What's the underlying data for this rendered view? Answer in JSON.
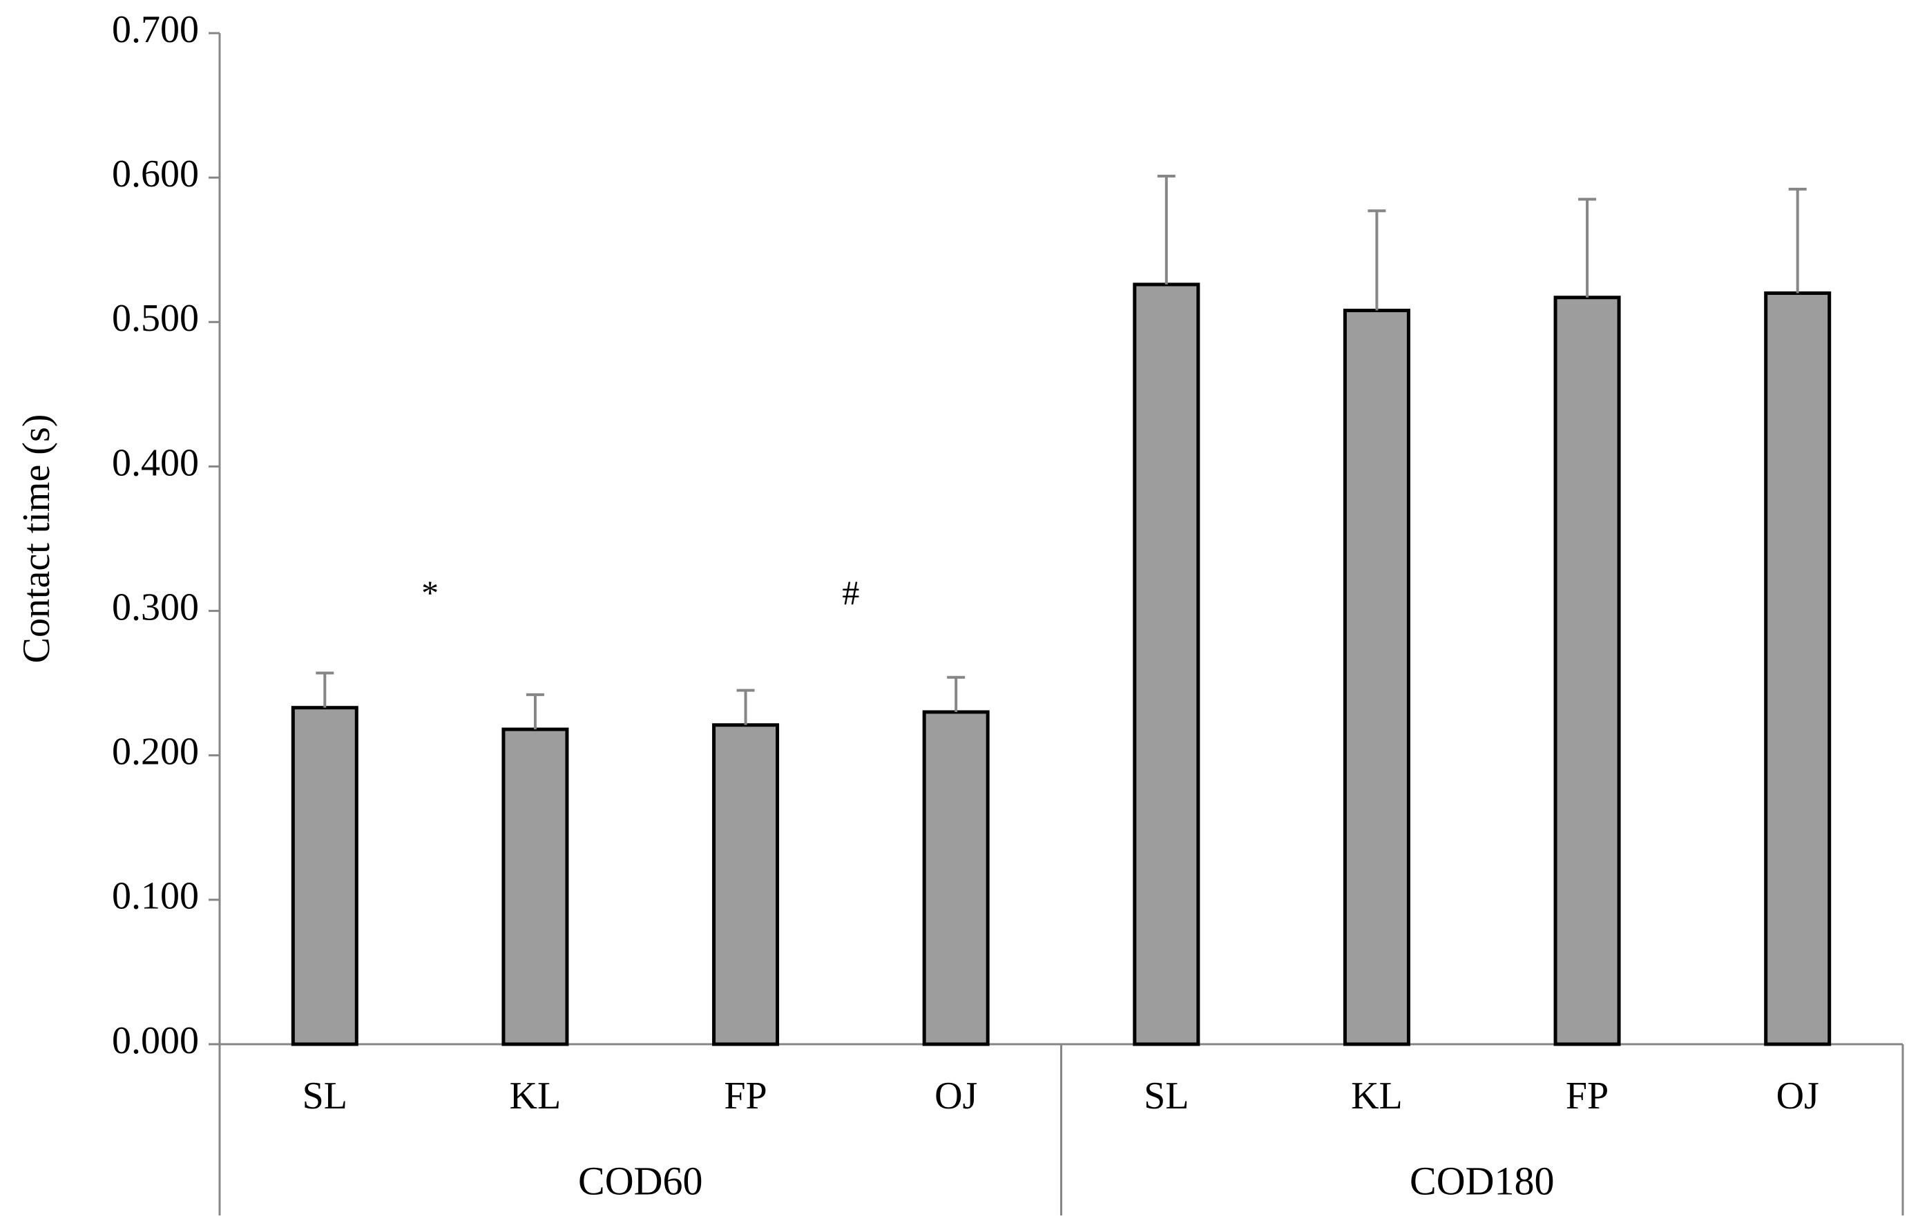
{
  "chart_data": {
    "type": "bar",
    "title": "",
    "xlabel": "",
    "ylabel": "Contact time (s)",
    "ylim": [
      0,
      0.7
    ],
    "yticks": [
      "0.000",
      "0.100",
      "0.200",
      "0.300",
      "0.400",
      "0.500",
      "0.600",
      "0.700"
    ],
    "grid": false,
    "groups": [
      {
        "name": "COD60",
        "categories": [
          "SL",
          "KL",
          "FP",
          "OJ"
        ],
        "values": [
          0.233,
          0.218,
          0.221,
          0.23
        ],
        "errors": [
          0.024,
          0.024,
          0.024,
          0.024
        ]
      },
      {
        "name": "COD180",
        "categories": [
          "SL",
          "KL",
          "FP",
          "OJ"
        ],
        "values": [
          0.526,
          0.508,
          0.517,
          0.52
        ],
        "errors": [
          0.075,
          0.069,
          0.068,
          0.072
        ]
      }
    ],
    "annotations": [
      {
        "text": "*",
        "between": [
          0,
          1
        ],
        "y": 0.31
      },
      {
        "text": "#",
        "between": [
          2,
          3
        ],
        "y": 0.31
      }
    ],
    "colors": {
      "bar_fill": "#9d9d9d",
      "bar_stroke": "#000000",
      "axis": "#868686",
      "error_bar": "#868686"
    }
  }
}
